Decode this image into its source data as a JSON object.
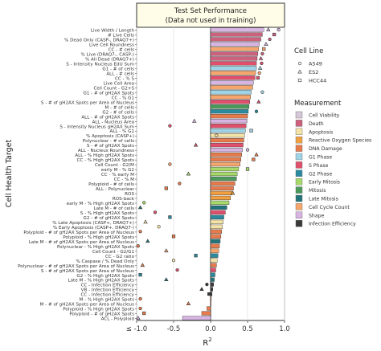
{
  "chart_data": {
    "type": "bar",
    "title": "Test Set Performance",
    "subtitle": "(Data not used in training)",
    "xlabel": "R",
    "xlabel_sup": "2",
    "ylabel": "Cell Health Target",
    "xlim": [
      -1.0,
      1.0
    ],
    "x_ticks": [
      -1.0,
      -0.5,
      0.0,
      0.5,
      1.0
    ],
    "x_tick_labels": [
      "≤ -1.0",
      "-0.5",
      "0.0",
      "0.5",
      "1.0"
    ],
    "grid": true,
    "legend_placement": "right",
    "categories": [
      "Live Width / Length",
      "# Live Cells",
      "% Dead Only (CASP-, DRAQ7+)",
      "Live Cell Roundness",
      "CC - # cells",
      "% Live (DRAQ7-, CASP-)",
      "% All Dead (DRAQ7+)",
      "S - Intensity Nucleus EdU Sum",
      "G1 - # of cells",
      "ALL - # cells",
      "CC - % S",
      "Live Cell Area",
      "Cell Count - G2+S",
      "G1 - # of gH2AX Spots",
      "CC - % G1",
      "S - # of gH2AX Spots per Area of Nucleus",
      "M - # of cells",
      "G2 - # of cells",
      "ALL - # of gH2AX Spots",
      "ALL - Nucleus Area",
      "S - Intensity Nucleus gH2AX Sum",
      "ALL - % G1",
      "% Apoptosis (CASP+)",
      "Polynuclear - # of cells",
      "S - # of gH2AX Spots",
      "ALL - Nucleus Roundness",
      "ALL - % High gH2AX Spots",
      "CC - % High gH2AX Spots",
      "Cell Count - G2/M",
      "early M - % G2",
      "CC - % early M",
      "CC - % M",
      "Polyploid - # of cells",
      "ALL - Polynuclear",
      "ROS",
      "ROS-back",
      "early M - % High gH2AX Spots",
      "Late M - # of cells",
      "S - % High gH2AX Spots",
      "G2 - # of gH2AX Spots",
      "% Late Apoptosis (CASP+, DRAQ7+)",
      "% Early Apoptosis (CASP+, DRAQ7-)",
      "Polyploid - # of gH2AX Spots per Area of Nucleus",
      "Polyploid - % High gH2AX Spots",
      "Late M - # of gH2AX Spots per Area of Nucleus",
      "Polynuclear - % High gH2AX Spots",
      "Cell Count - G2/G1",
      "CC - G2 ratio",
      "% Caspase / % Dead Only",
      "Polynuclear - # of gH2AX Spots per Area of Nucleus",
      "S - # of gH2AX Spots per Area of Nucleus",
      "G2 - % High gH2AX Spots",
      "Late M - % High gH2AX Spots",
      "CC - Infection Efficiency",
      "VB - Infection Efficiency",
      "CC - Infection Efficiency",
      "M - % High gH2AX Spots",
      "M - # of gH2AX Spots per Area of Nucleus",
      "Polyploid - % High gH2AX Spots",
      "Polyploid - # of gH2AX Spots",
      "ACL - Polyploid"
    ],
    "values": [
      0.72,
      0.7,
      0.68,
      0.66,
      0.65,
      0.64,
      0.63,
      0.62,
      0.62,
      0.61,
      0.6,
      0.58,
      0.57,
      0.55,
      0.54,
      0.53,
      0.52,
      0.51,
      0.5,
      0.49,
      0.48,
      0.47,
      0.46,
      0.45,
      0.44,
      0.43,
      0.42,
      0.41,
      0.4,
      0.38,
      0.36,
      0.35,
      0.33,
      0.31,
      0.29,
      0.27,
      0.25,
      0.22,
      0.2,
      0.18,
      0.17,
      0.16,
      0.15,
      0.14,
      0.13,
      0.12,
      0.11,
      0.1,
      0.09,
      0.08,
      0.07,
      0.06,
      0.05,
      0.04,
      0.03,
      0.02,
      0.01,
      0.0,
      -0.05,
      -0.12,
      -0.38
    ],
    "measurement": [
      "Shape",
      "Death",
      "Death",
      "Shape",
      "Cell Cycle Count",
      "Death",
      "Death",
      "S Phase",
      "G1 Phase",
      "Cell Cycle Count",
      "S Phase",
      "Shape",
      "Cell Cycle Count",
      "G1 Phase",
      "Cell Cycle Count",
      "S Phase",
      "Mitosis",
      "G2 Phase",
      "DNA Damage",
      "Shape",
      "S Phase",
      "G1 Phase",
      "Apoptosis",
      "DNA Damage",
      "S Phase",
      "Shape",
      "DNA Damage",
      "DNA Damage",
      "Cell Cycle Count",
      "Early Mitosis",
      "Early Mitosis",
      "Mitosis",
      "DNA Damage",
      "DNA Damage",
      "Reactive Oxygen Species",
      "Reactive Oxygen Species",
      "Early Mitosis",
      "Late Mitosis",
      "S Phase",
      "G2 Phase",
      "Apoptosis",
      "Apoptosis",
      "DNA Damage",
      "DNA Damage",
      "Late Mitosis",
      "DNA Damage",
      "Cell Cycle Count",
      "G2 Phase",
      "Apoptosis",
      "DNA Damage",
      "S Phase",
      "G2 Phase",
      "Late Mitosis",
      "Infection Efficiency",
      "Infection Efficiency",
      "Infection Efficiency",
      "DNA Damage",
      "DNA Damage",
      "DNA Damage",
      "DNA Damage",
      "Shape"
    ],
    "points": [
      {
        "row": 0,
        "x": 0.92,
        "line": "A549"
      },
      {
        "row": 0,
        "x": 0.78,
        "line": "ES2"
      },
      {
        "row": 1,
        "x": 0.86,
        "line": "HCC44"
      },
      {
        "row": 2,
        "x": 0.8,
        "line": "A549"
      },
      {
        "row": 3,
        "x": 0.75,
        "line": "ES2"
      },
      {
        "row": 4,
        "x": 0.72,
        "line": "HCC44"
      },
      {
        "row": 5,
        "x": 0.7,
        "line": "A549"
      },
      {
        "row": 6,
        "x": 0.68,
        "line": "ES2"
      },
      {
        "row": 7,
        "x": 0.69,
        "line": "A549"
      },
      {
        "row": 8,
        "x": 0.67,
        "line": "ES2"
      },
      {
        "row": 9,
        "x": 0.66,
        "line": "A549"
      },
      {
        "row": 10,
        "x": 0.64,
        "line": "HCC44"
      },
      {
        "row": 13,
        "x": 0.7,
        "line": "A549"
      },
      {
        "row": 15,
        "x": 0.65,
        "line": "ES2"
      },
      {
        "row": 17,
        "x": 0.62,
        "line": "A549"
      },
      {
        "row": 19,
        "x": -0.22,
        "line": "ES2"
      },
      {
        "row": 20,
        "x": -0.55,
        "line": "A549"
      },
      {
        "row": 21,
        "x": 0.55,
        "line": "HCC44"
      },
      {
        "row": 22,
        "x": 0.08,
        "line": "A549"
      },
      {
        "row": 24,
        "x": -0.2,
        "line": "ES2"
      },
      {
        "row": 25,
        "x": 0.5,
        "line": "A549"
      },
      {
        "row": 26,
        "x": 0.62,
        "line": "ES2"
      },
      {
        "row": 27,
        "x": 0.58,
        "line": "HCC44"
      },
      {
        "row": 28,
        "x": -0.55,
        "line": "A549"
      },
      {
        "row": 29,
        "x": 0.5,
        "line": "HCC44"
      },
      {
        "row": 30,
        "x": -0.3,
        "line": "ES2"
      },
      {
        "row": 32,
        "x": -0.42,
        "line": "A549"
      },
      {
        "row": 33,
        "x": -0.6,
        "line": "HCC44"
      },
      {
        "row": 34,
        "x": 0.3,
        "line": "ES2"
      },
      {
        "row": 36,
        "x": -0.9,
        "line": "A549"
      },
      {
        "row": 37,
        "x": -0.95,
        "line": "ES2"
      },
      {
        "row": 38,
        "x": -0.75,
        "line": "A549"
      },
      {
        "row": 39,
        "x": -0.55,
        "line": "HCC44"
      },
      {
        "row": 40,
        "x": -0.88,
        "line": "ES2"
      },
      {
        "row": 41,
        "x": -0.7,
        "line": "A549"
      },
      {
        "row": 42,
        "x": -0.95,
        "line": "A549"
      },
      {
        "row": 43,
        "x": -0.5,
        "line": "HCC44"
      },
      {
        "row": 44,
        "x": -0.85,
        "line": "ES2"
      },
      {
        "row": 45,
        "x": -0.98,
        "line": "A549"
      },
      {
        "row": 46,
        "x": -0.6,
        "line": "ES2"
      },
      {
        "row": 47,
        "x": -0.2,
        "line": "HCC44"
      },
      {
        "row": 48,
        "x": -0.5,
        "line": "A549"
      },
      {
        "row": 49,
        "x": -0.92,
        "line": "ES2"
      },
      {
        "row": 50,
        "x": -0.45,
        "line": "A549"
      },
      {
        "row": 51,
        "x": -0.95,
        "line": "HCC44"
      },
      {
        "row": 52,
        "x": -0.6,
        "line": "ES2"
      },
      {
        "row": 53,
        "x": -0.05,
        "line": "A549"
      },
      {
        "row": 54,
        "x": -0.12,
        "line": "ES2"
      },
      {
        "row": 55,
        "x": -0.02,
        "line": "HCC44"
      },
      {
        "row": 56,
        "x": -0.95,
        "line": "A549"
      },
      {
        "row": 57,
        "x": -0.3,
        "line": "ES2"
      },
      {
        "row": 58,
        "x": -0.95,
        "line": "A549"
      },
      {
        "row": 59,
        "x": -0.9,
        "line": "HCC44"
      },
      {
        "row": 60,
        "x": -0.98,
        "line": "ES2"
      }
    ],
    "legend_cell_line": {
      "title": "Cell Line",
      "entries": [
        {
          "label": "A549",
          "shape": "circle"
        },
        {
          "label": "ES2",
          "shape": "triangle"
        },
        {
          "label": "HCC44",
          "shape": "square"
        }
      ]
    },
    "legend_measurement": {
      "title": "Measurement",
      "entries": [
        {
          "label": "Cell Viability",
          "color": "#d5c8d8"
        },
        {
          "label": "Death",
          "color": "#cc607d"
        },
        {
          "label": "Apoptosis",
          "color": "#f4e3a6"
        },
        {
          "label": "Reactive Oxygen Species",
          "color": "#f0a040"
        },
        {
          "label": "DNA Damage",
          "color": "#e77b4b"
        },
        {
          "label": "G1 Phase",
          "color": "#9fd3e6"
        },
        {
          "label": "S Phase",
          "color": "#e0506d"
        },
        {
          "label": "G2 Phase",
          "color": "#2b8a9e"
        },
        {
          "label": "Early Mitosis",
          "color": "#a6d96a"
        },
        {
          "label": "Mitosis",
          "color": "#4a9a5a"
        },
        {
          "label": "Late Mitosis",
          "color": "#23747a"
        },
        {
          "label": "Cell Cycle Count",
          "color": "#f6a56c"
        },
        {
          "label": "Shape",
          "color": "#d8b4e2"
        },
        {
          "label": "Infection Efficiency",
          "color": "#3a3a3a"
        }
      ]
    }
  }
}
